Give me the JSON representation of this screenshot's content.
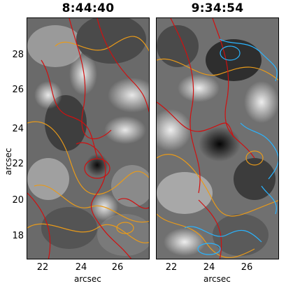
{
  "panels": [
    {
      "title": "8:44:40",
      "xticks": [
        "22",
        "24",
        "26"
      ],
      "xlabel": "arcsec"
    },
    {
      "title": "9:34:54",
      "xticks": [
        "22",
        "24",
        "26"
      ],
      "xlabel": "arcsec"
    }
  ],
  "yaxis": {
    "label": "arcsec",
    "ticks": [
      "28",
      "26",
      "24",
      "22",
      "20",
      "18"
    ]
  },
  "colors": {
    "contour_red": "#d01010",
    "contour_orange": "#e89a1a",
    "contour_cyan": "#2ab4ff",
    "frame": "#000000"
  }
}
